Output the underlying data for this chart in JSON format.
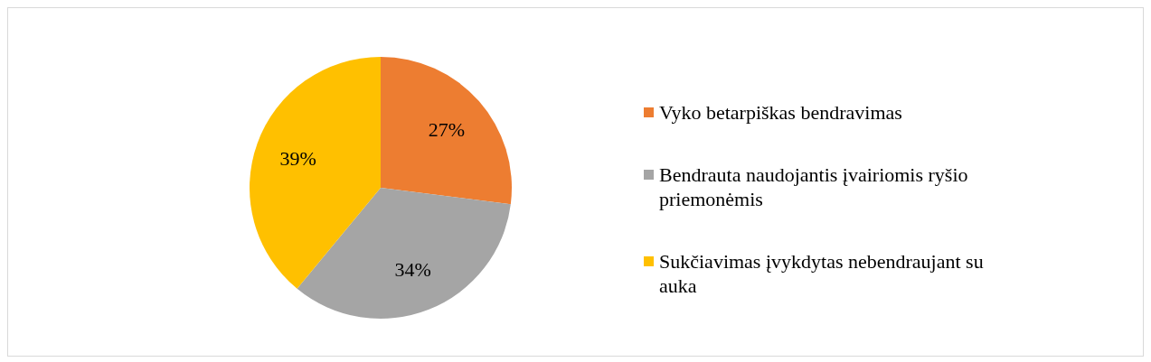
{
  "chart_data": {
    "type": "pie",
    "categories": [
      "Vyko betarpiškas bendravimas",
      "Bendrauta naudojantis įvairiomis ryšio priemonėmis",
      "Sukčiavimas įvykdytas nebendraujant su auka"
    ],
    "values": [
      27,
      34,
      39
    ],
    "colors": [
      "#ed7d31",
      "#a5a5a5",
      "#ffc000"
    ],
    "value_labels": [
      "27%",
      "34%",
      "39%"
    ],
    "legend": "right"
  }
}
